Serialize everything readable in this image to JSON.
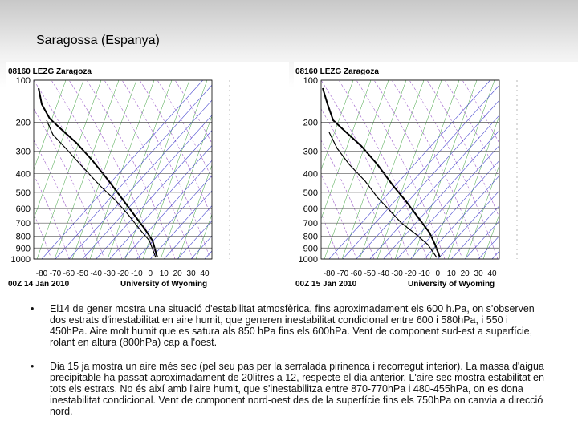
{
  "title": "Saragossa (Espanya)",
  "soundings": [
    {
      "station": "08160 LEZG Zaragoza",
      "date": "00Z 14 Jan 2010",
      "source": "University of Wyoming",
      "pressure_labels": [
        100,
        200,
        300,
        400,
        500,
        600,
        700,
        800,
        900,
        1000
      ],
      "temperature_labels": [
        -80,
        -70,
        -60,
        -50,
        -40,
        -30,
        -20,
        -10,
        0,
        10,
        20,
        30,
        40
      ]
    },
    {
      "station": "08160 LEZG Zaragoza",
      "date": "00Z 15 Jan 2010",
      "source": "University of Wyoming",
      "pressure_labels": [
        100,
        200,
        300,
        400,
        500,
        600,
        700,
        800,
        900,
        1000
      ],
      "temperature_labels": [
        -80,
        -70,
        -60,
        -50,
        -40,
        -30,
        -20,
        -10,
        0,
        10,
        20,
        30,
        40
      ]
    }
  ],
  "bullets": [
    "El14 de gener mostra una situació d'estabilitat atmosfèrica, fins aproximadament els 600 h.Pa, on s'observen dos estrats d'inestabilitat en aire humit, que generen inestabilitat condicional entre 600 i 580hPa, i 550 i 450hPa. Aire molt humit que es satura als 850 hPa fins els 600hPa. Vent de component sud-est a superfície, rolant en altura (800hPa) cap a l'oest.",
    "Dia 15 ja mostra un aire més sec (pel seu pas per la serralada pirinenca i recorregut interior). La massa d'aigua precipitable ha passat aproximadament de 20litres a 12, respecte el dia anterior. L'aire sec mostra estabilitat en tots els estrats. No és així amb l'aire humit, que s'inestabilitza entre 870-770hPa i 480-455hPa, on es dona inestabilitat condicional. Vent de component nord-oest des de la superfície fins els 750hPa on canvia a direcció nord."
  ]
}
